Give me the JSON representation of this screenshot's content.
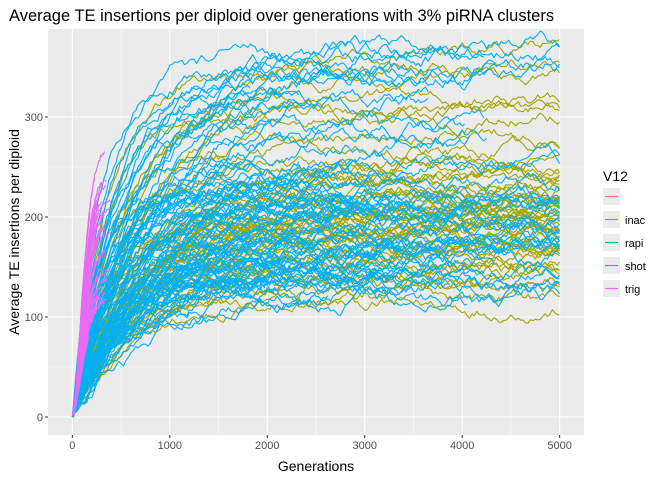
{
  "chart_data": {
    "type": "line",
    "title": "Average TE insertions per diploid over generations with 3% piRNA clusters",
    "xlabel": "Generations",
    "ylabel": "Average TE insertions per diploid",
    "xlim": [
      -250,
      5250
    ],
    "ylim": [
      -18,
      388
    ],
    "x_ticks": [
      0,
      1000,
      2000,
      3000,
      4000,
      5000
    ],
    "x_tick_labels": [
      "0",
      "1000",
      "2000",
      "3000",
      "4000",
      "5000"
    ],
    "y_ticks": [
      0,
      100,
      200,
      300
    ],
    "y_tick_labels": [
      "0",
      "100",
      "200",
      "300"
    ],
    "grid": true,
    "panel_background": "#EBEBEB",
    "legend": {
      "title": "V12",
      "position": "right",
      "entries": [
        {
          "label": "",
          "color": "#F8766D"
        },
        {
          "label": "inac",
          "color": "#A3A500"
        },
        {
          "label": "rapi",
          "color": "#00BF7D"
        },
        {
          "label": "shot",
          "color": "#00B0F6"
        },
        {
          "label": "trig",
          "color": "#E76BF3"
        }
      ]
    },
    "series_groups": [
      {
        "group": "inac",
        "color": "#A3A500",
        "x_range": [
          0,
          5000
        ],
        "approx_count": 55,
        "final_values": [
          110,
          122,
          128,
          135,
          140,
          145,
          150,
          155,
          158,
          160,
          163,
          165,
          170,
          172,
          175,
          178,
          180,
          182,
          184,
          186,
          188,
          190,
          192,
          194,
          196,
          198,
          200,
          202,
          204,
          206,
          208,
          210,
          212,
          215,
          218,
          220,
          223,
          226,
          230,
          233,
          236,
          240,
          244,
          248,
          252,
          260,
          268,
          282,
          300,
          305,
          310,
          322,
          340,
          348,
          370
        ]
      },
      {
        "group": "shot",
        "color": "#00B0F6",
        "x_range": [
          0,
          5000
        ],
        "approx_count": 95,
        "final_values": [
          125,
          130,
          135,
          140,
          145,
          150,
          155,
          160,
          165,
          170,
          175,
          180,
          185,
          190,
          195,
          200,
          205,
          210,
          215,
          220,
          225,
          230,
          240,
          250,
          260,
          275,
          290,
          305,
          318,
          330,
          345,
          360,
          368
        ]
      },
      {
        "group": "trig",
        "color": "#E76BF3",
        "x_range": [
          0,
          400
        ],
        "approx_count": 60,
        "final_values": [
          65,
          75,
          85,
          95,
          105,
          115,
          125,
          135,
          145,
          160,
          175,
          190,
          210
        ]
      },
      {
        "group": "rapi",
        "color": "#00BF7D",
        "x_range": [
          0,
          20
        ],
        "approx_count": 5,
        "final_values": [
          0,
          1,
          2
        ]
      }
    ]
  }
}
